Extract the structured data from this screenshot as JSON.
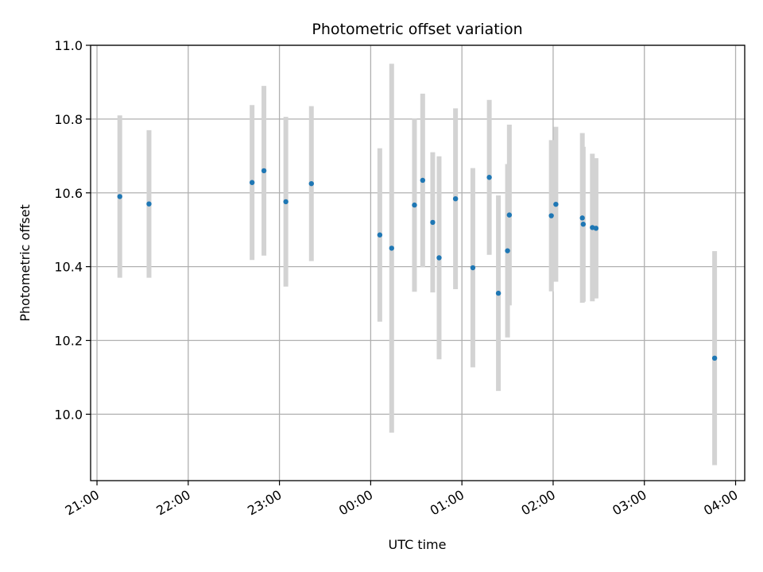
{
  "chart_data": {
    "type": "scatter",
    "title": "Photometric offset variation",
    "xlabel": "UTC time",
    "ylabel": "Photometric offset",
    "x_tick_labels": [
      "21:00",
      "22:00",
      "23:00",
      "00:00",
      "01:00",
      "02:00",
      "03:00",
      "04:00"
    ],
    "x_tick_hours": [
      21,
      22,
      23,
      24,
      25,
      26,
      27,
      28
    ],
    "xlim_hours": [
      20.93,
      28.1
    ],
    "y_ticks": [
      10.0,
      10.2,
      10.4,
      10.6,
      10.8,
      11.0
    ],
    "y_tick_labels": [
      "10.0",
      "10.2",
      "10.4",
      "10.6",
      "10.8",
      "11.0"
    ],
    "ylim": [
      9.82,
      11.0
    ],
    "grid": true,
    "marker_color": "#1f77b4",
    "errorbar_color": "#d3d3d3",
    "points": [
      {
        "t": 21.25,
        "y": 10.59,
        "err": 0.22
      },
      {
        "t": 21.57,
        "y": 10.57,
        "err": 0.2
      },
      {
        "t": 22.7,
        "y": 10.628,
        "err": 0.21
      },
      {
        "t": 22.83,
        "y": 10.66,
        "err": 0.23
      },
      {
        "t": 23.07,
        "y": 10.576,
        "err": 0.23
      },
      {
        "t": 23.35,
        "y": 10.625,
        "err": 0.21
      },
      {
        "t": 24.1,
        "y": 10.486,
        "err": 0.235
      },
      {
        "t": 24.23,
        "y": 10.45,
        "err": 0.5
      },
      {
        "t": 24.48,
        "y": 10.567,
        "err": 0.235
      },
      {
        "t": 24.57,
        "y": 10.634,
        "err": 0.235
      },
      {
        "t": 24.68,
        "y": 10.52,
        "err": 0.19
      },
      {
        "t": 24.75,
        "y": 10.424,
        "err": 0.275
      },
      {
        "t": 24.93,
        "y": 10.584,
        "err": 0.245
      },
      {
        "t": 25.12,
        "y": 10.397,
        "err": 0.27
      },
      {
        "t": 25.3,
        "y": 10.642,
        "err": 0.21
      },
      {
        "t": 25.4,
        "y": 10.328,
        "err": 0.265
      },
      {
        "t": 25.5,
        "y": 10.443,
        "err": 0.235
      },
      {
        "t": 25.52,
        "y": 10.54,
        "err": 0.245
      },
      {
        "t": 25.98,
        "y": 10.538,
        "err": 0.205
      },
      {
        "t": 26.03,
        "y": 10.569,
        "err": 0.21
      },
      {
        "t": 26.32,
        "y": 10.532,
        "err": 0.23
      },
      {
        "t": 26.33,
        "y": 10.515,
        "err": 0.21
      },
      {
        "t": 26.43,
        "y": 10.506,
        "err": 0.2
      },
      {
        "t": 26.47,
        "y": 10.504,
        "err": 0.19
      },
      {
        "t": 27.77,
        "y": 10.152,
        "err": 0.29
      }
    ]
  }
}
